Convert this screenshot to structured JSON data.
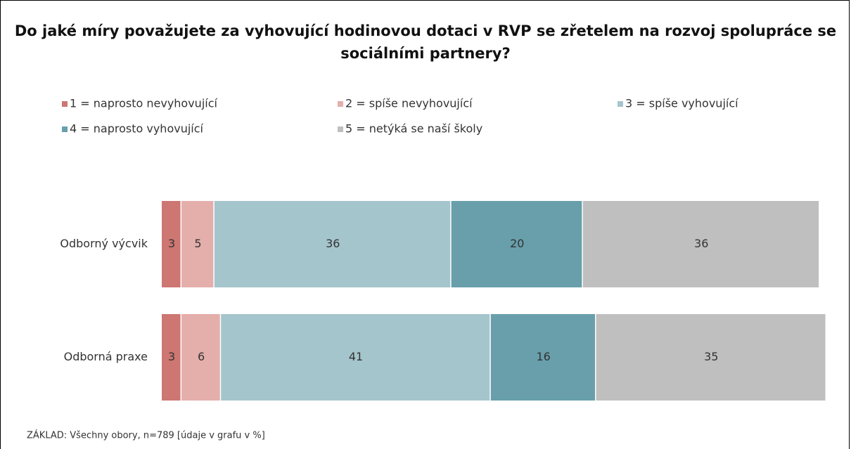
{
  "chart_data": {
    "type": "stacked_barh",
    "title": "Do jaké míry považujete za vyhovující hodinovou dotaci v RVP se zřetelem na rozvoj spolupráce se sociálními partnery?",
    "footnote": "ZÁKLAD: Všechny obory, n=789 [údaje v grafu v %]",
    "categories": [
      "Odborný výcvik",
      "Odborná praxe"
    ],
    "series": [
      {
        "name": "1 = naprosto nevyhovující",
        "color": "#cd7672",
        "values": [
          3,
          3
        ]
      },
      {
        "name": "2 = spíše nevyhovující",
        "color": "#e4aeab",
        "values": [
          5,
          6
        ]
      },
      {
        "name": "3 = spíše vyhovující",
        "color": "#a5c5cc",
        "values": [
          36,
          41
        ]
      },
      {
        "name": "4 = naprosto vyhovující",
        "color": "#689fab",
        "values": [
          20,
          16
        ]
      },
      {
        "name": "5 = netýká se naší školy",
        "color": "#bfbfbf",
        "values": [
          36,
          35
        ]
      }
    ]
  }
}
